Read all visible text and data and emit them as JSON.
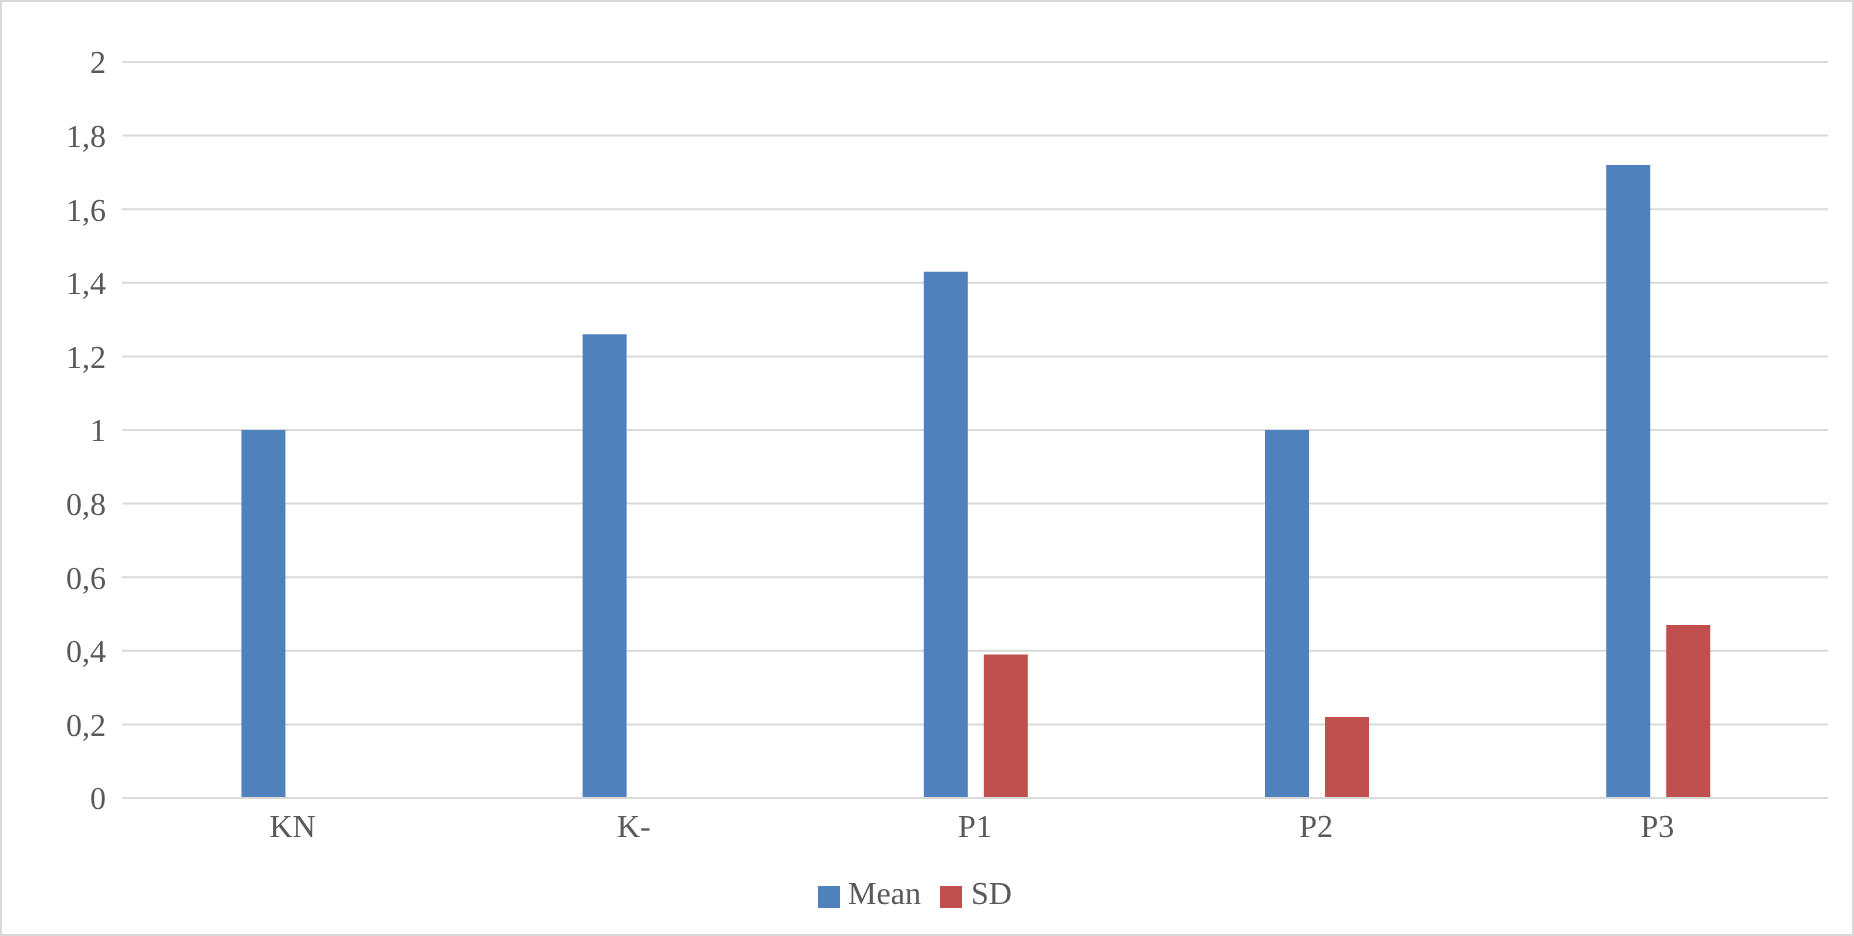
{
  "chart_data": {
    "type": "bar",
    "categories": [
      "KN",
      "K-",
      "P1",
      "P2",
      "P3"
    ],
    "series": [
      {
        "name": "Mean",
        "color": "#4f81bd",
        "values": [
          1,
          1.26,
          1.43,
          1,
          1.72
        ]
      },
      {
        "name": "SD",
        "color": "#c0504d",
        "values": [
          0,
          0,
          0.39,
          0.22,
          0.47
        ]
      }
    ],
    "ylim": [
      0,
      2
    ],
    "yticks": [
      {
        "value": 0,
        "label": "0"
      },
      {
        "value": 0.2,
        "label": "0,2"
      },
      {
        "value": 0.4,
        "label": "0,4"
      },
      {
        "value": 0.6,
        "label": "0,6"
      },
      {
        "value": 0.8,
        "label": "0,8"
      },
      {
        "value": 1,
        "label": "1"
      },
      {
        "value": 1.2,
        "label": "1,2"
      },
      {
        "value": 1.4,
        "label": "1,4"
      },
      {
        "value": 1.6,
        "label": "1,6"
      },
      {
        "value": 1.8,
        "label": "1,8"
      },
      {
        "value": 2,
        "label": "2"
      }
    ],
    "grid": "y",
    "legend": "bottom"
  }
}
